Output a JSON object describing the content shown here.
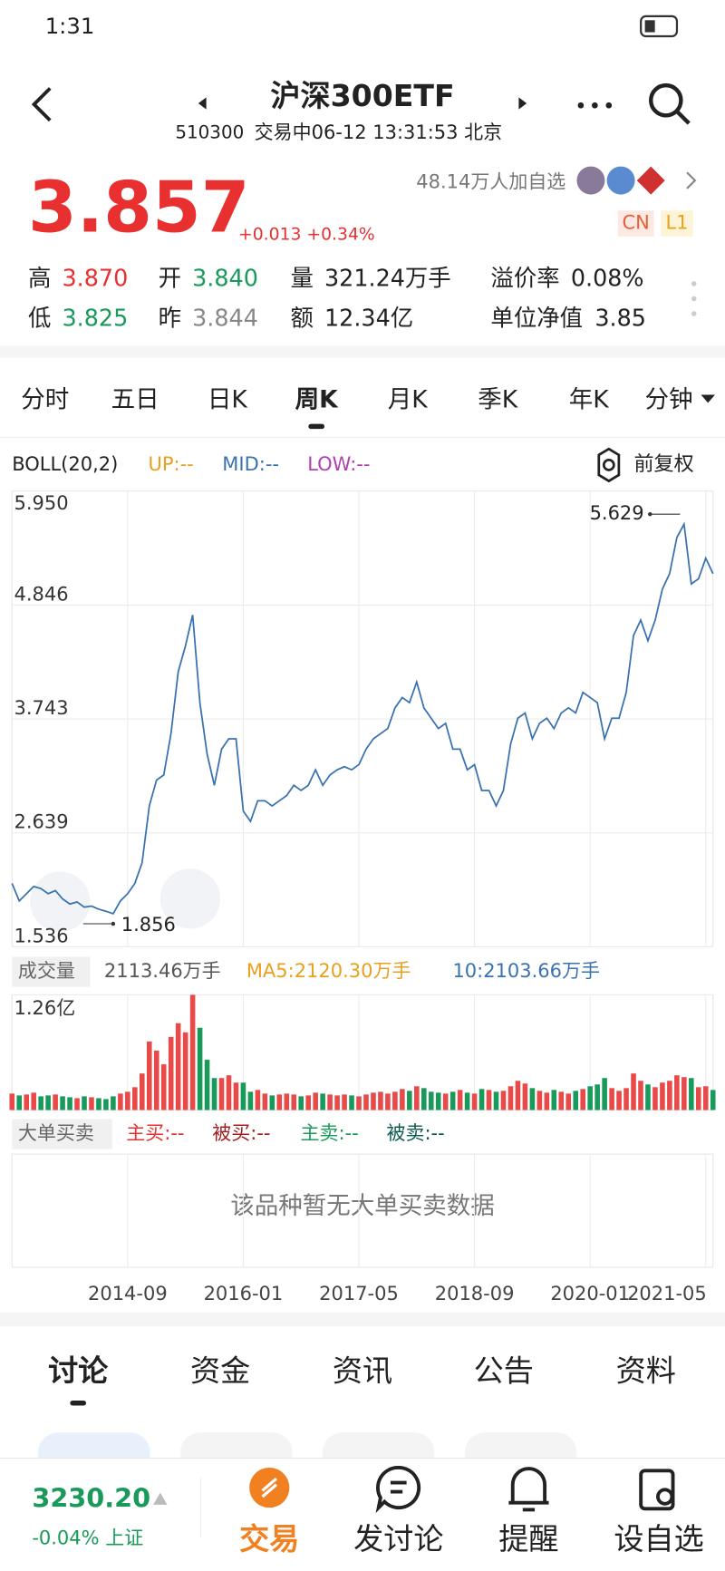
{
  "status_bar": {
    "time": "1:31"
  },
  "header": {
    "title": "沪深300ETF",
    "code": "510300",
    "status": "交易中06-12 13:31:53 北京"
  },
  "quote": {
    "price": "3.857",
    "change": "+0.013 +0.34%",
    "watchers": "48.14万人加自选",
    "badges": [
      "CN",
      "L1"
    ]
  },
  "stats": [
    [
      "高",
      "3.870"
    ],
    [
      "开",
      "3.840"
    ],
    [
      "量",
      "321.24万手"
    ],
    [
      "溢价率",
      "0.08%"
    ],
    [
      "低",
      "3.825"
    ],
    [
      "昨",
      "3.844"
    ],
    [
      "额",
      "12.34亿"
    ],
    [
      "单位净值",
      "3.85"
    ]
  ],
  "period_tabs": [
    "分时",
    "五日",
    "日K",
    "周K",
    "月K",
    "季K",
    "年K",
    "分钟"
  ],
  "indicator": {
    "name": "BOLL(20,2)",
    "up": "UP:--",
    "mid": "MID:--",
    "low": "LOW:--",
    "adjust": "前复权"
  },
  "chart_data": [
    {
      "type": "line",
      "color": "#3a72b0",
      "categories": [
        null,
        null,
        null,
        null,
        null,
        null,
        null,
        null,
        null,
        null,
        null,
        null,
        null,
        null,
        null,
        null,
        "2014-09",
        null,
        null,
        null,
        null,
        null,
        null,
        null,
        null,
        null,
        null,
        null,
        null,
        null,
        null,
        null,
        "2016-01",
        null,
        null,
        null,
        null,
        null,
        null,
        null,
        null,
        null,
        null,
        null,
        null,
        null,
        null,
        null,
        "2017-05",
        null,
        null,
        null,
        null,
        null,
        null,
        null,
        null,
        null,
        null,
        null,
        null,
        null,
        null,
        null,
        "2018-09",
        null,
        null,
        null,
        null,
        null,
        null,
        null,
        null,
        null,
        null,
        null,
        null,
        null,
        null,
        null,
        "2020-01",
        null,
        null,
        null,
        null,
        null,
        null,
        null,
        null,
        null,
        null,
        null,
        null,
        null,
        null,
        null,
        "2021-05",
        null
      ],
      "values": [
        2.15,
        1.98,
        2.05,
        2.12,
        2.1,
        2.05,
        2.08,
        2.0,
        1.95,
        1.97,
        1.92,
        1.93,
        1.9,
        1.88,
        1.856,
        1.98,
        2.05,
        2.15,
        2.35,
        2.9,
        3.15,
        3.2,
        3.6,
        4.2,
        4.45,
        4.75,
        3.9,
        3.4,
        3.1,
        3.45,
        3.55,
        3.55,
        2.85,
        2.75,
        2.95,
        2.95,
        2.9,
        2.95,
        3.0,
        3.1,
        3.05,
        3.1,
        3.25,
        3.1,
        3.2,
        3.25,
        3.28,
        3.25,
        3.3,
        3.45,
        3.55,
        3.6,
        3.65,
        3.85,
        3.95,
        3.9,
        4.1,
        3.85,
        3.75,
        3.65,
        3.7,
        3.45,
        3.45,
        3.25,
        3.3,
        3.05,
        3.05,
        2.9,
        3.05,
        3.5,
        3.75,
        3.8,
        3.55,
        3.7,
        3.75,
        3.65,
        3.8,
        3.85,
        3.8,
        4.0,
        3.95,
        3.9,
        3.55,
        3.75,
        3.75,
        4.0,
        4.55,
        4.7,
        4.5,
        4.7,
        5.0,
        5.15,
        5.5,
        5.629,
        5.05,
        5.1,
        5.3,
        5.15
      ],
      "ylim": [
        1.536,
        5.95
      ],
      "yticks": [
        1.536,
        2.639,
        3.743,
        4.846,
        {
          "value": 5.95,
          "label": "5.950"
        }
      ],
      "annotations": {
        "max": "5.629",
        "min": "1.856"
      }
    },
    {
      "type": "bar",
      "title": "成交量",
      "latest": "2113.46万手",
      "ma5": "MA5:2120.30万手",
      "ma10": "10:2103.66万手",
      "up_color": "#e84a4a",
      "down_color": "#1a9a5a",
      "values": [
        1800,
        1600,
        1700,
        1900,
        1500,
        1600,
        1700,
        1500,
        1400,
        1300,
        1500,
        1400,
        1300,
        1200,
        1500,
        1800,
        2000,
        2500,
        4000,
        7500,
        6500,
        5000,
        8000,
        9500,
        8500,
        12600,
        9000,
        5500,
        3500,
        3500,
        3800,
        3000,
        3000,
        2000,
        2200,
        1800,
        1600,
        1700,
        1800,
        1700,
        1500,
        1600,
        1900,
        1800,
        1700,
        1600,
        1700,
        1600,
        1500,
        1700,
        1900,
        2000,
        1800,
        2000,
        2300,
        2100,
        2600,
        2400,
        2000,
        1900,
        1800,
        2000,
        2200,
        1900,
        1800,
        2300,
        2200,
        2000,
        2100,
        2600,
        3200,
        2900,
        2400,
        2100,
        1900,
        2200,
        2000,
        1800,
        2100,
        2300,
        2600,
        2800,
        3500,
        2400,
        2100,
        2400,
        4000,
        3200,
        2800,
        2500,
        3000,
        3200,
        3800,
        3600,
        3500,
        2500,
        2600,
        2200
      ],
      "ylim": [
        0,
        12600
      ],
      "yticks": [
        {
          "value": 12600,
          "label": "1.26亿"
        }
      ]
    }
  ],
  "big_orders": {
    "title": "大单买卖",
    "items": [
      "主买:--",
      "被买:--",
      "主卖:--",
      "被卖:--"
    ],
    "empty": "该品种暂无大单买卖数据"
  },
  "content_tabs": [
    "讨论",
    "资金",
    "资讯",
    "公告",
    "资料"
  ],
  "bottom_bar": {
    "index_value": "3230.20",
    "index_change": "-0.04% 上证",
    "actions": [
      "交易",
      "发讨论",
      "提醒",
      "设自选"
    ]
  }
}
